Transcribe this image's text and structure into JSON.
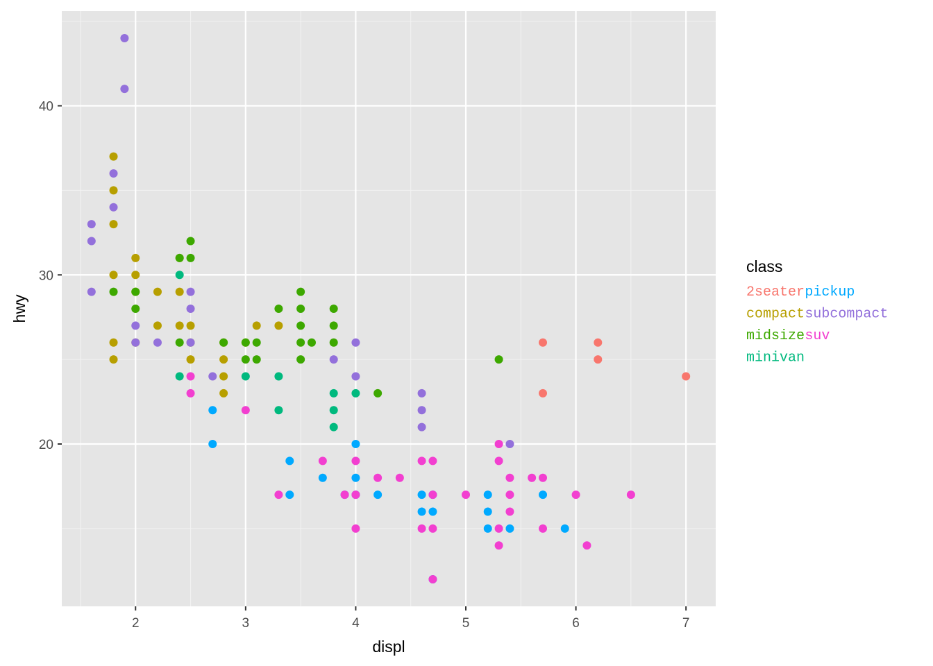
{
  "chart_data": {
    "type": "scatter",
    "title": "",
    "xlabel": "displ",
    "ylabel": "hwy",
    "xlim": [
      1.33,
      7.27
    ],
    "ylim": [
      10.4,
      45.6
    ],
    "x_ticks": [
      2,
      3,
      4,
      5,
      6,
      7
    ],
    "y_ticks": [
      20,
      30,
      40
    ],
    "grid": true,
    "panel_background": "#e5e5e5",
    "legend": {
      "title": "class",
      "placement": "right",
      "rows": [
        [
          {
            "label": "2seater",
            "color": "#F8766D"
          },
          {
            "label": "pickup",
            "color": "#00A9FF"
          }
        ],
        [
          {
            "label": "compact",
            "color": "#B79F00"
          },
          {
            "label": "subcompact",
            "color": "#9370DB"
          }
        ],
        [
          {
            "label": "midsize",
            "color": "#3DA800"
          },
          {
            "label": "suv",
            "color": "#F23FD0"
          }
        ],
        [
          {
            "label": "minivan",
            "color": "#00B97E"
          }
        ]
      ]
    },
    "series": [
      {
        "name": "2seater",
        "color": "#F8766D",
        "points": [
          [
            5.7,
            26
          ],
          [
            5.7,
            23
          ],
          [
            6.2,
            26
          ],
          [
            6.2,
            25
          ],
          [
            7.0,
            24
          ]
        ]
      },
      {
        "name": "compact",
        "color": "#B79F00",
        "points": [
          [
            1.8,
            37
          ],
          [
            1.8,
            35
          ],
          [
            1.8,
            33
          ],
          [
            1.8,
            30
          ],
          [
            1.8,
            26
          ],
          [
            1.8,
            25
          ],
          [
            2.0,
            31
          ],
          [
            2.0,
            30
          ],
          [
            2.0,
            29
          ],
          [
            2.0,
            26
          ],
          [
            2.2,
            29
          ],
          [
            2.2,
            27
          ],
          [
            2.4,
            31
          ],
          [
            2.4,
            29
          ],
          [
            2.4,
            27
          ],
          [
            2.5,
            27
          ],
          [
            2.5,
            26
          ],
          [
            2.5,
            25
          ],
          [
            2.8,
            26
          ],
          [
            2.8,
            25
          ],
          [
            2.8,
            24
          ],
          [
            2.8,
            23
          ],
          [
            3.0,
            26
          ],
          [
            3.1,
            27
          ],
          [
            3.3,
            27
          ]
        ]
      },
      {
        "name": "midsize",
        "color": "#3DA800",
        "points": [
          [
            1.8,
            29
          ],
          [
            2.0,
            29
          ],
          [
            2.0,
            28
          ],
          [
            2.4,
            31
          ],
          [
            2.4,
            26
          ],
          [
            2.5,
            32
          ],
          [
            2.5,
            31
          ],
          [
            2.8,
            26
          ],
          [
            3.0,
            26
          ],
          [
            3.0,
            25
          ],
          [
            3.1,
            26
          ],
          [
            3.1,
            25
          ],
          [
            3.3,
            28
          ],
          [
            3.5,
            29
          ],
          [
            3.5,
            28
          ],
          [
            3.5,
            27
          ],
          [
            3.5,
            26
          ],
          [
            3.5,
            25
          ],
          [
            3.6,
            26
          ],
          [
            3.8,
            28
          ],
          [
            3.8,
            27
          ],
          [
            3.8,
            26
          ],
          [
            4.2,
            23
          ],
          [
            5.3,
            25
          ]
        ]
      },
      {
        "name": "minivan",
        "color": "#00B97E",
        "points": [
          [
            2.4,
            30
          ],
          [
            2.4,
            24
          ],
          [
            3.0,
            24
          ],
          [
            3.3,
            24
          ],
          [
            3.3,
            22
          ],
          [
            3.8,
            23
          ],
          [
            3.8,
            22
          ],
          [
            3.8,
            21
          ],
          [
            4.0,
            23
          ]
        ]
      },
      {
        "name": "pickup",
        "color": "#00A9FF",
        "points": [
          [
            2.7,
            22
          ],
          [
            2.7,
            20
          ],
          [
            3.4,
            19
          ],
          [
            3.4,
            17
          ],
          [
            3.7,
            18
          ],
          [
            3.9,
            17
          ],
          [
            4.0,
            20
          ],
          [
            4.0,
            18
          ],
          [
            4.0,
            17
          ],
          [
            4.2,
            17
          ],
          [
            4.6,
            17
          ],
          [
            4.6,
            16
          ],
          [
            4.7,
            17
          ],
          [
            4.7,
            16
          ],
          [
            4.7,
            12
          ],
          [
            5.2,
            17
          ],
          [
            5.2,
            16
          ],
          [
            5.2,
            15
          ],
          [
            5.4,
            15
          ],
          [
            5.7,
            17
          ],
          [
            5.9,
            15
          ]
        ]
      },
      {
        "name": "subcompact",
        "color": "#9370DB",
        "points": [
          [
            1.6,
            33
          ],
          [
            1.6,
            32
          ],
          [
            1.6,
            29
          ],
          [
            1.8,
            36
          ],
          [
            1.8,
            34
          ],
          [
            1.9,
            44
          ],
          [
            1.9,
            41
          ],
          [
            2.0,
            27
          ],
          [
            2.0,
            26
          ],
          [
            2.2,
            26
          ],
          [
            2.5,
            29
          ],
          [
            2.5,
            28
          ],
          [
            2.5,
            26
          ],
          [
            2.7,
            24
          ],
          [
            3.8,
            25
          ],
          [
            4.0,
            26
          ],
          [
            4.0,
            24
          ],
          [
            4.6,
            23
          ],
          [
            4.6,
            22
          ],
          [
            4.6,
            21
          ],
          [
            5.4,
            20
          ]
        ]
      },
      {
        "name": "suv",
        "color": "#F23FD0",
        "points": [
          [
            2.5,
            24
          ],
          [
            2.5,
            23
          ],
          [
            3.0,
            22
          ],
          [
            3.3,
            17
          ],
          [
            3.7,
            19
          ],
          [
            3.9,
            17
          ],
          [
            4.0,
            19
          ],
          [
            4.0,
            17
          ],
          [
            4.0,
            15
          ],
          [
            4.2,
            18
          ],
          [
            4.4,
            18
          ],
          [
            4.6,
            19
          ],
          [
            4.6,
            15
          ],
          [
            4.7,
            19
          ],
          [
            4.7,
            17
          ],
          [
            4.7,
            15
          ],
          [
            4.7,
            12
          ],
          [
            5.0,
            17
          ],
          [
            5.3,
            20
          ],
          [
            5.3,
            19
          ],
          [
            5.3,
            15
          ],
          [
            5.3,
            14
          ],
          [
            5.4,
            18
          ],
          [
            5.4,
            17
          ],
          [
            5.4,
            16
          ],
          [
            5.6,
            18
          ],
          [
            5.7,
            18
          ],
          [
            5.7,
            15
          ],
          [
            6.0,
            17
          ],
          [
            6.1,
            14
          ],
          [
            6.5,
            17
          ]
        ]
      }
    ]
  }
}
